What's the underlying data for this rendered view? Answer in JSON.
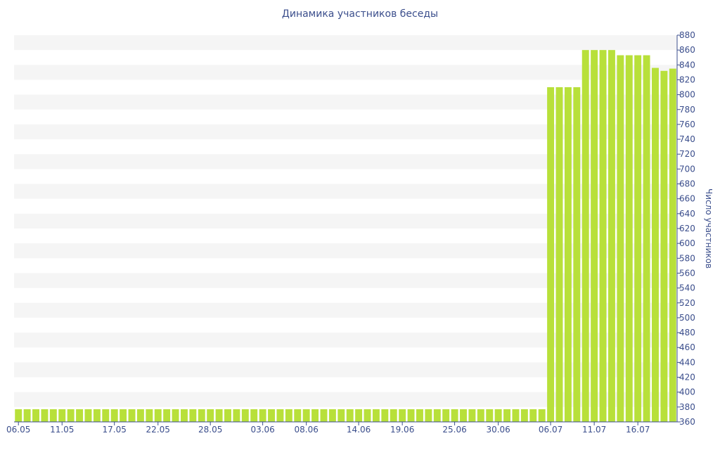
{
  "chart_data": {
    "type": "bar",
    "title": "Динамика участников беседы",
    "xlabel": "",
    "ylabel": "Число участников",
    "ylim": [
      360,
      880
    ],
    "y_ticks": [
      360,
      380,
      400,
      420,
      440,
      460,
      480,
      500,
      520,
      540,
      560,
      580,
      600,
      620,
      640,
      660,
      680,
      700,
      720,
      740,
      760,
      780,
      800,
      820,
      840,
      860,
      880
    ],
    "x_tick_labels": [
      "06.05",
      "11.05",
      "17.05",
      "22.05",
      "28.05",
      "03.06",
      "08.06",
      "14.06",
      "19.06",
      "25.06",
      "30.06",
      "06.07",
      "11.07",
      "16.07"
    ],
    "categories": [
      "06.05",
      "07.05",
      "08.05",
      "09.05",
      "10.05",
      "11.05",
      "12.05",
      "13.05",
      "14.05",
      "15.05",
      "16.05",
      "17.05",
      "18.05",
      "19.05",
      "20.05",
      "21.05",
      "22.05",
      "23.05",
      "24.05",
      "25.05",
      "26.05",
      "27.05",
      "28.05",
      "29.05",
      "30.05",
      "31.05",
      "01.06",
      "02.06",
      "03.06",
      "04.06",
      "05.06",
      "06.06",
      "07.06",
      "08.06",
      "09.06",
      "10.06",
      "11.06",
      "12.06",
      "13.06",
      "14.06",
      "15.06",
      "16.06",
      "17.06",
      "18.06",
      "19.06",
      "20.06",
      "21.06",
      "22.06",
      "23.06",
      "24.06",
      "25.06",
      "26.06",
      "27.06",
      "28.06",
      "29.06",
      "30.06",
      "01.07",
      "02.07",
      "03.07",
      "04.07",
      "05.07",
      "06.07",
      "07.07",
      "08.07",
      "09.07",
      "10.07",
      "11.07",
      "12.07",
      "13.07",
      "14.07",
      "15.07",
      "16.07",
      "17.07",
      "18.07",
      "19.07",
      "20.07"
    ],
    "values": [
      377,
      377,
      377,
      377,
      377,
      377,
      377,
      377,
      377,
      377,
      377,
      377,
      377,
      377,
      377,
      377,
      377,
      377,
      377,
      377,
      377,
      377,
      377,
      377,
      377,
      377,
      377,
      377,
      377,
      377,
      377,
      377,
      377,
      377,
      377,
      377,
      377,
      377,
      377,
      377,
      377,
      377,
      377,
      377,
      377,
      377,
      377,
      377,
      377,
      377,
      377,
      377,
      377,
      377,
      377,
      377,
      377,
      377,
      377,
      377,
      377,
      810,
      810,
      810,
      810,
      860,
      860,
      860,
      860,
      853,
      853,
      853,
      853,
      836,
      832,
      835
    ],
    "bar_color": "#b8e03a",
    "stripe_color": "#f5f5f5",
    "axis_color": "#3b4e8c",
    "grid": true
  }
}
